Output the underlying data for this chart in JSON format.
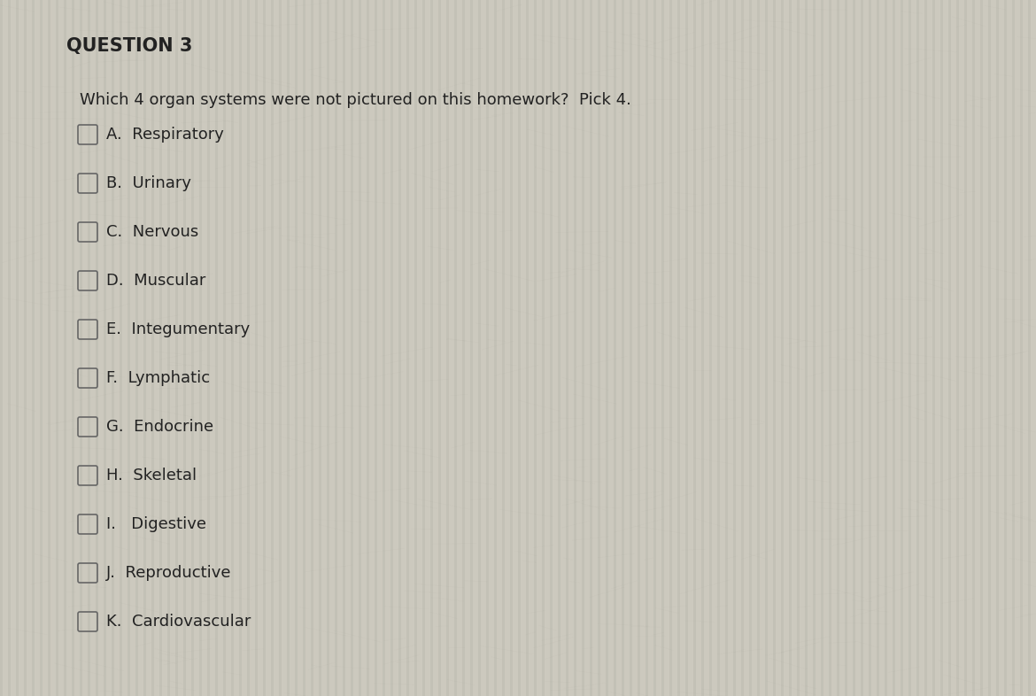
{
  "title": "QUESTION 3",
  "question": "Which 4 organ systems were not pictured on this homework?  Pick 4.",
  "options": [
    "A.  Respiratory",
    "B.  Urinary",
    "C.  Nervous",
    "D.  Muscular",
    "E.  Integumentary",
    "F.  Lymphatic",
    "G.  Endocrine",
    "H.  Skeletal",
    "I.   Digestive",
    "J.  Reproductive",
    "K.  Cardiovascular"
  ],
  "bg_color_light": "#ccc9be",
  "bg_color_dark": "#b8b5aa",
  "text_color": "#222222",
  "title_fontsize": 15,
  "question_fontsize": 13,
  "option_fontsize": 13,
  "checkbox_color": "#666666",
  "checkbox_lw": 1.2,
  "stripe_alpha": 0.12,
  "stripe_color": "#888880"
}
